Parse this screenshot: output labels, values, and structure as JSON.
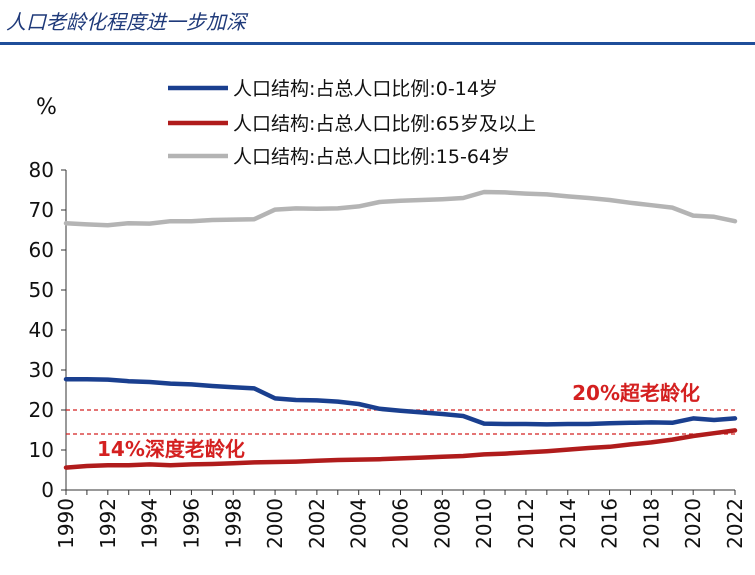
{
  "header": {
    "title": "人口老龄化程度进一步加深"
  },
  "chart_data": {
    "type": "line",
    "title": "",
    "ylabel": "%",
    "xlabel": "",
    "ylim": [
      0,
      80
    ],
    "yticks": [
      0,
      10,
      20,
      30,
      40,
      50,
      60,
      70,
      80
    ],
    "xlim": [
      1990,
      2022
    ],
    "xticks": [
      1990,
      1992,
      1994,
      1996,
      1998,
      2000,
      2002,
      2004,
      2006,
      2008,
      2010,
      2012,
      2014,
      2016,
      2018,
      2020,
      2022
    ],
    "grid": false,
    "legend_position": "top",
    "x": [
      1990,
      1991,
      1992,
      1993,
      1994,
      1995,
      1996,
      1997,
      1998,
      1999,
      2000,
      2001,
      2002,
      2003,
      2004,
      2005,
      2006,
      2007,
      2008,
      2009,
      2010,
      2011,
      2012,
      2013,
      2014,
      2015,
      2016,
      2017,
      2018,
      2019,
      2020,
      2021,
      2022
    ],
    "series": [
      {
        "name": "人口结构:占总人口比例:0-14岁",
        "color": "#1a3f8f",
        "values": [
          27.7,
          27.7,
          27.6,
          27.2,
          27.0,
          26.6,
          26.4,
          26.0,
          25.7,
          25.4,
          22.9,
          22.5,
          22.4,
          22.1,
          21.5,
          20.3,
          19.8,
          19.4,
          19.0,
          18.5,
          16.6,
          16.5,
          16.5,
          16.4,
          16.5,
          16.5,
          16.7,
          16.8,
          16.9,
          16.8,
          17.9,
          17.5,
          17.9
        ]
      },
      {
        "name": "人口结构:占总人口比例:65岁及以上",
        "color": "#b01c1c",
        "values": [
          5.6,
          6.0,
          6.2,
          6.2,
          6.4,
          6.2,
          6.4,
          6.5,
          6.7,
          6.9,
          7.0,
          7.1,
          7.3,
          7.5,
          7.6,
          7.7,
          7.9,
          8.1,
          8.3,
          8.5,
          8.9,
          9.1,
          9.4,
          9.7,
          10.1,
          10.5,
          10.8,
          11.4,
          11.9,
          12.6,
          13.5,
          14.2,
          14.9
        ]
      },
      {
        "name": "人口结构:占总人口比例:15-64岁",
        "color": "#b4b4b4",
        "values": [
          66.7,
          66.4,
          66.2,
          66.7,
          66.6,
          67.2,
          67.2,
          67.5,
          67.6,
          67.7,
          70.1,
          70.4,
          70.3,
          70.4,
          70.9,
          72.0,
          72.3,
          72.5,
          72.7,
          73.0,
          74.5,
          74.4,
          74.1,
          73.9,
          73.4,
          73.0,
          72.5,
          71.8,
          71.2,
          70.6,
          68.6,
          68.3,
          67.2
        ]
      }
    ],
    "reference_lines": [
      {
        "y": 20,
        "label": "20%超老龄化",
        "color": "#d42020",
        "style": "dashed"
      },
      {
        "y": 14,
        "label": "14%深度老龄化",
        "color": "#d42020",
        "style": "dashed"
      }
    ]
  }
}
